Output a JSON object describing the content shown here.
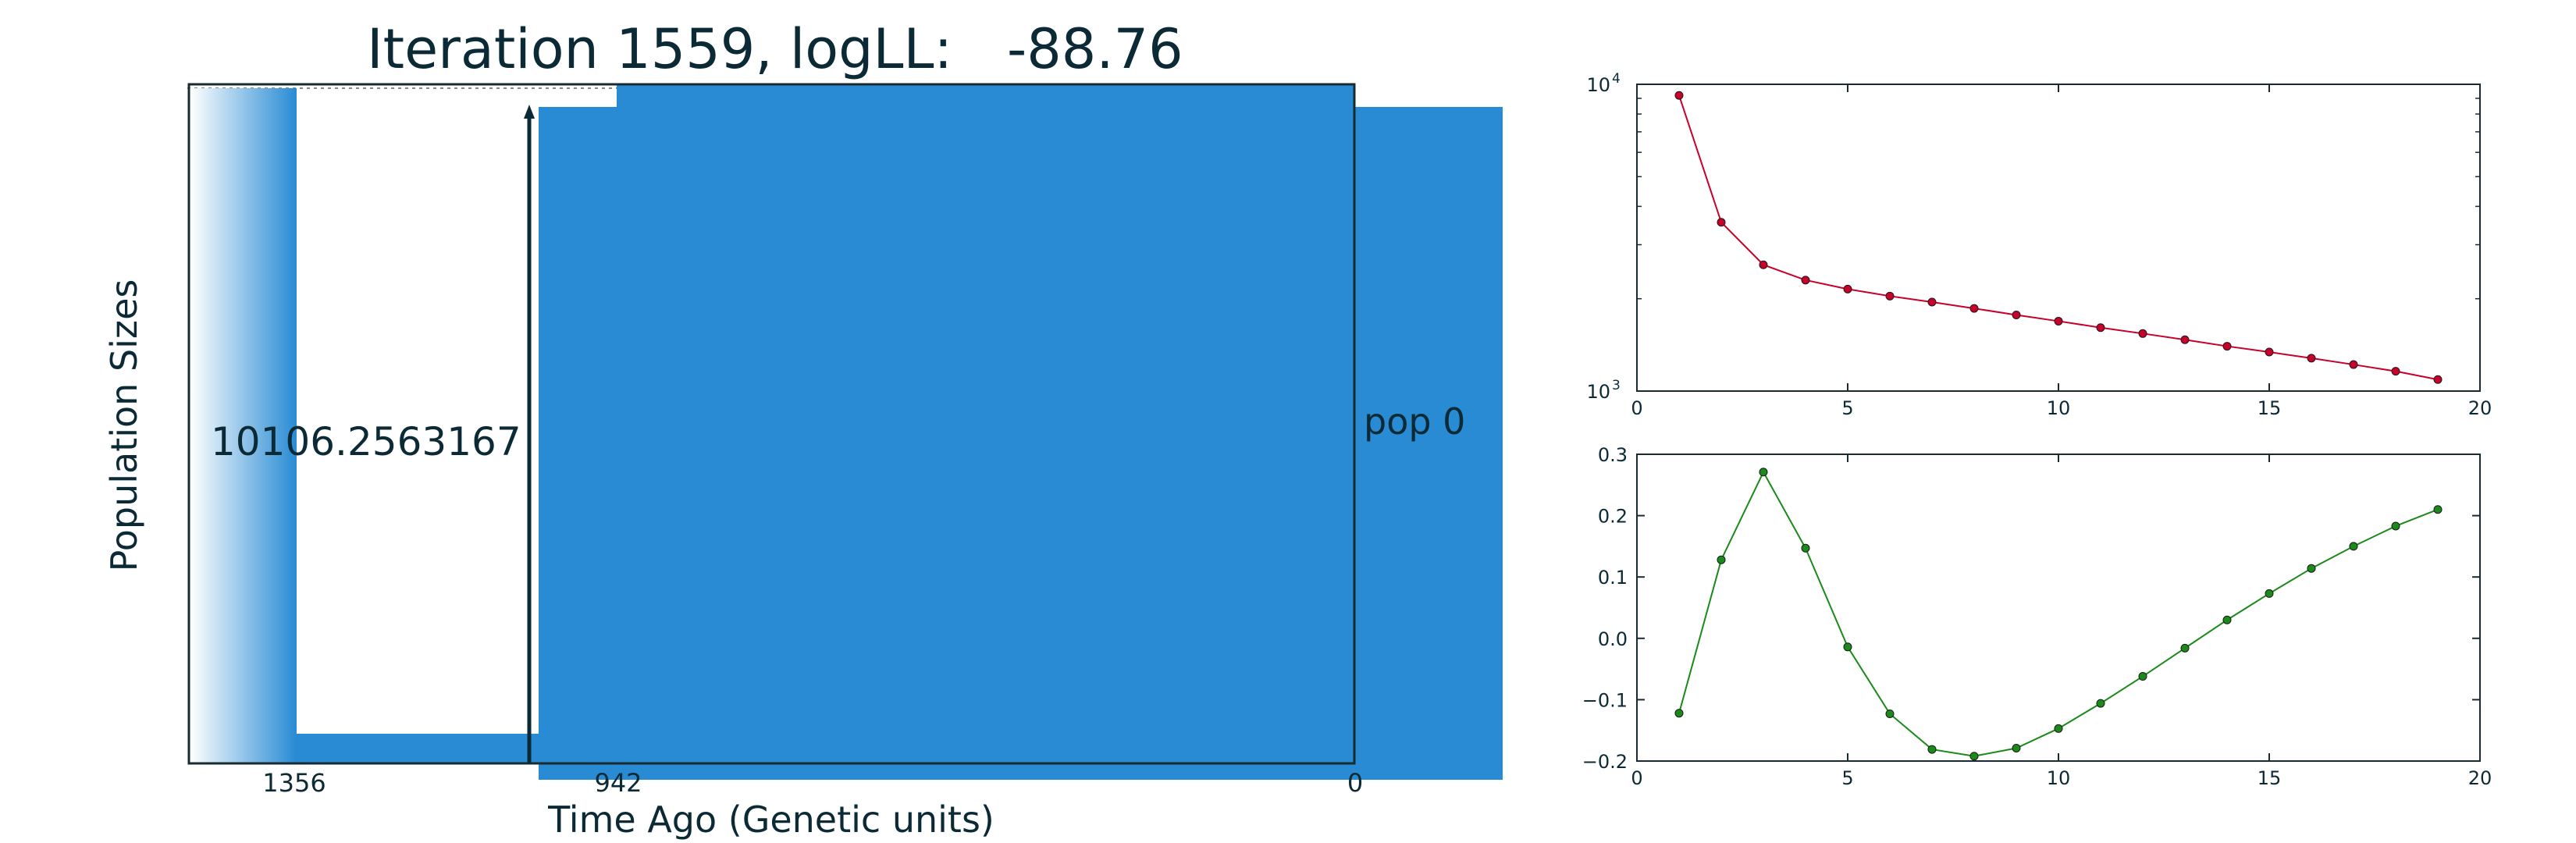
{
  "title": {
    "prefix": "Iteration 1559, logLL:",
    "value": "-88.76"
  },
  "colors": {
    "text": "#0b2a35",
    "fill": "#288bd4",
    "frame": "#1a2b30",
    "red": "#c8002a",
    "green": "#1a8a1a"
  },
  "chart_data": [
    {
      "type": "area",
      "name": "population-history",
      "xlabel": "Time Ago (Genetic units)",
      "ylabel": "Population Sizes",
      "x_ticks": [
        "1356",
        "942",
        "0"
      ],
      "size_label": "10106.2563167",
      "population_label": "pop 0",
      "epochs": [
        {
          "from": 1356,
          "to": 942
        },
        {
          "from": 942,
          "to": 0
        }
      ]
    },
    {
      "type": "line",
      "name": "size-trace",
      "yscale": "log",
      "xlim": [
        0,
        20
      ],
      "ylim": [
        1000,
        10000
      ],
      "x_ticks": [
        "0",
        "5",
        "10",
        "15",
        "20"
      ],
      "y_ticks": [
        "10",
        "10"
      ],
      "y_tick_exponents": [
        "3",
        "4"
      ],
      "x": [
        1,
        2,
        3,
        4,
        5,
        6,
        7,
        8,
        9,
        10,
        11,
        12,
        13,
        14,
        15,
        16,
        17,
        18,
        19
      ],
      "y": [
        9200,
        3550,
        2580,
        2300,
        2150,
        2040,
        1950,
        1860,
        1770,
        1690,
        1610,
        1540,
        1470,
        1400,
        1340,
        1280,
        1220,
        1160,
        1090
      ]
    },
    {
      "type": "line",
      "name": "rate-trace",
      "xlim": [
        0,
        20
      ],
      "ylim": [
        -0.2,
        0.3
      ],
      "x_ticks": [
        "0",
        "5",
        "10",
        "15",
        "20"
      ],
      "y_ticks": [
        "−0.2",
        "−0.1",
        "0.0",
        "0.1",
        "0.2",
        "0.3"
      ],
      "x": [
        1,
        2,
        3,
        4,
        5,
        6,
        7,
        8,
        9,
        10,
        11,
        12,
        13,
        14,
        15,
        16,
        17,
        18,
        19
      ],
      "y": [
        -0.122,
        0.128,
        0.271,
        0.147,
        -0.014,
        -0.123,
        -0.181,
        -0.192,
        -0.179,
        -0.147,
        -0.106,
        -0.062,
        -0.016,
        0.03,
        0.073,
        0.114,
        0.15,
        0.183,
        0.21
      ]
    }
  ]
}
